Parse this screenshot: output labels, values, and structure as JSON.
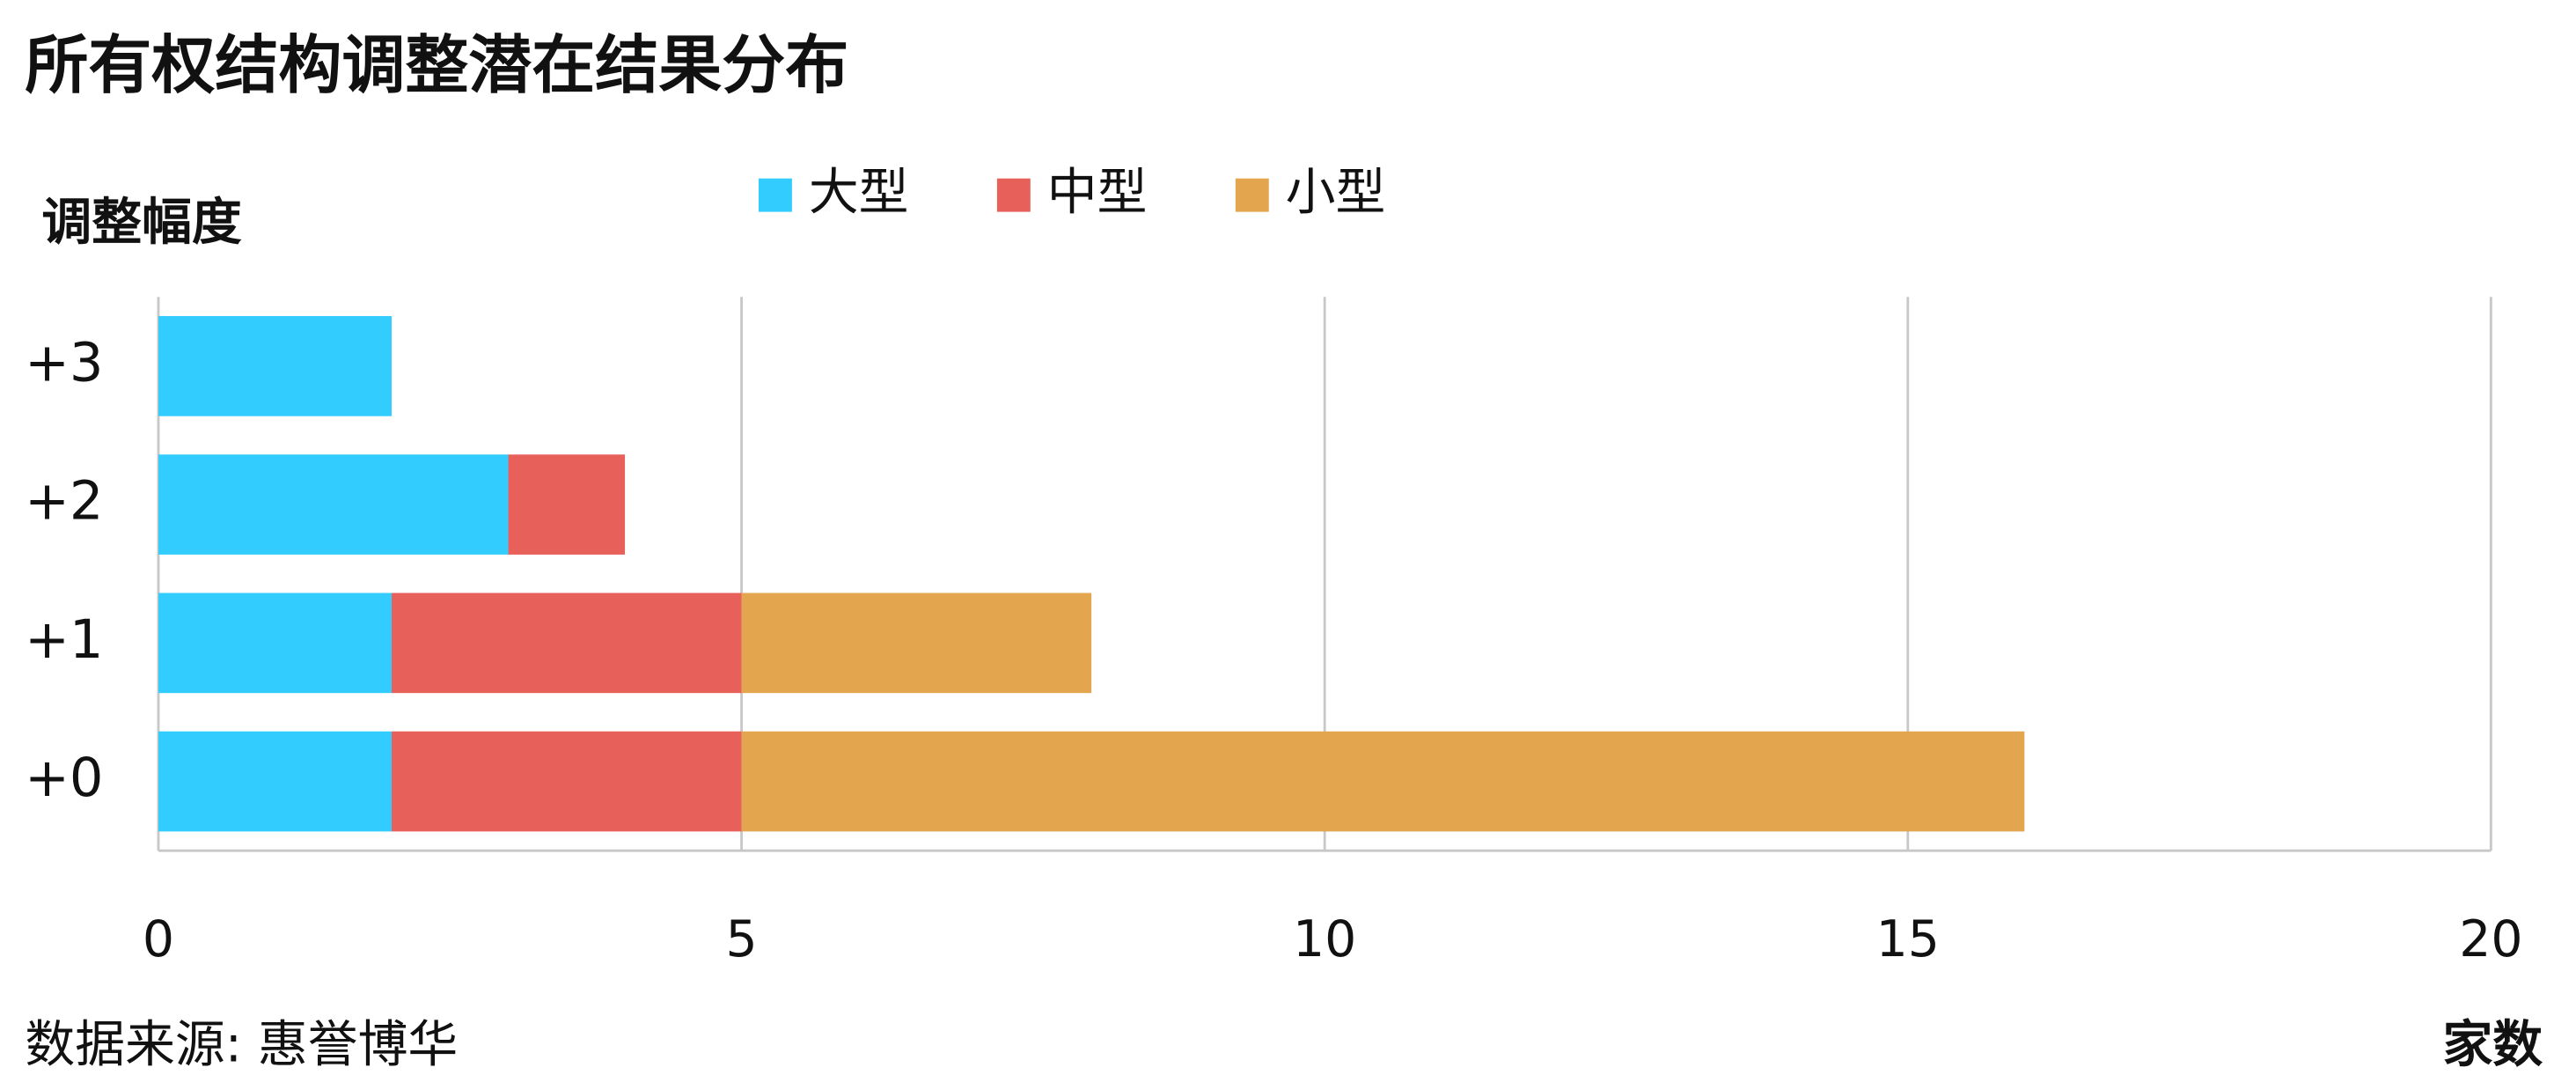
{
  "chart_data": {
    "type": "stacked-barh",
    "title": "所有权结构调整潜在结果分布",
    "y_label": "调整幅度",
    "x_label": "家数",
    "source": "数据来源: 惠誉博华",
    "categories": [
      "+3",
      "+2",
      "+1",
      "+0"
    ],
    "series": [
      {
        "name": "大型",
        "color": "#33ccff",
        "values": [
          2,
          3,
          2,
          2
        ]
      },
      {
        "name": "中型",
        "color": "#e8605a",
        "values": [
          0,
          1,
          3,
          3
        ]
      },
      {
        "name": "小型",
        "color": "#e3a54e",
        "values": [
          0,
          0,
          3,
          11
        ]
      }
    ],
    "xlim": [
      0,
      20
    ],
    "xticks": [
      0,
      5,
      10,
      15,
      20
    ],
    "grid": true,
    "legend": "top"
  }
}
